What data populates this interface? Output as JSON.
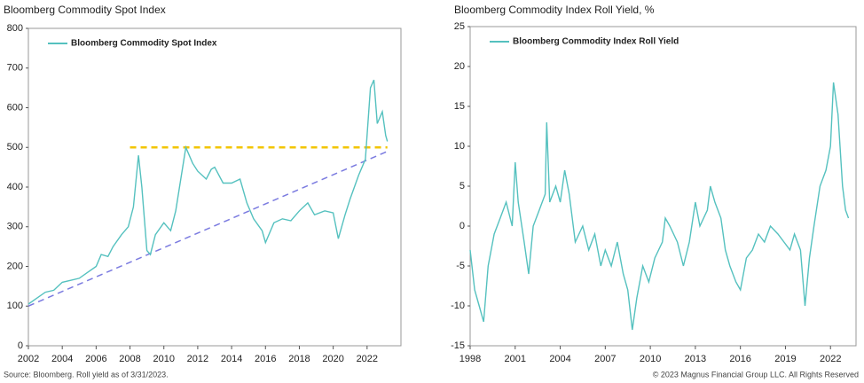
{
  "chart_data": [
    {
      "type": "line",
      "title": "Bloomberg Commodity Spot Index",
      "xlim": [
        2002,
        2024
      ],
      "xticks": [
        2002,
        2004,
        2006,
        2008,
        2010,
        2012,
        2014,
        2016,
        2018,
        2020,
        2022
      ],
      "ylim": [
        0,
        800
      ],
      "yticks": [
        0,
        100,
        200,
        300,
        400,
        500,
        600,
        700,
        800
      ],
      "grid": false,
      "series": [
        {
          "name": "Bloomberg Commodity Spot Index",
          "color": "#55c1bf",
          "x": [
            2002.0,
            2002.5,
            2003.0,
            2003.5,
            2004.0,
            2004.5,
            2005.0,
            2005.5,
            2006.0,
            2006.3,
            2006.7,
            2007.0,
            2007.5,
            2007.9,
            2008.2,
            2008.5,
            2008.7,
            2009.0,
            2009.2,
            2009.5,
            2010.0,
            2010.4,
            2010.7,
            2011.0,
            2011.3,
            2011.7,
            2012.0,
            2012.5,
            2012.8,
            2013.0,
            2013.5,
            2014.0,
            2014.5,
            2014.9,
            2015.3,
            2015.8,
            2016.0,
            2016.5,
            2017.0,
            2017.5,
            2018.0,
            2018.5,
            2018.9,
            2019.5,
            2020.0,
            2020.3,
            2020.7,
            2021.0,
            2021.5,
            2021.9,
            2022.2,
            2022.4,
            2022.6,
            2022.9,
            2023.1,
            2023.2
          ],
          "values": [
            105,
            120,
            135,
            140,
            160,
            165,
            170,
            185,
            200,
            230,
            225,
            250,
            280,
            300,
            350,
            480,
            400,
            240,
            230,
            280,
            310,
            290,
            340,
            420,
            500,
            460,
            440,
            420,
            445,
            450,
            410,
            410,
            420,
            360,
            320,
            290,
            260,
            310,
            320,
            315,
            340,
            360,
            330,
            340,
            335,
            270,
            330,
            370,
            430,
            470,
            650,
            670,
            560,
            590,
            530,
            515
          ]
        }
      ],
      "reference_lines": [
        {
          "color": "#f2c500",
          "x": [
            2008,
            2023.2
          ],
          "y": [
            500,
            500
          ]
        },
        {
          "color": "#7b7be0",
          "x": [
            2002,
            2023.2
          ],
          "y": [
            100,
            490
          ]
        }
      ]
    },
    {
      "type": "line",
      "title": "Bloomberg Commodity Index Roll Yield, %",
      "xlim": [
        1998,
        2023.7
      ],
      "xticks": [
        1998,
        2001,
        2004,
        2007,
        2010,
        2013,
        2016,
        2019,
        2022
      ],
      "ylim": [
        -15,
        25
      ],
      "yticks": [
        -15,
        -10,
        -5,
        0,
        5,
        10,
        15,
        20,
        25
      ],
      "grid": false,
      "series": [
        {
          "name": "Bloomberg Commodity Index Roll Yield",
          "color": "#55c1bf",
          "x": [
            1998.0,
            1998.3,
            1998.6,
            1998.9,
            1999.2,
            1999.6,
            2000.0,
            2000.4,
            2000.8,
            2001.0,
            2001.2,
            2001.6,
            2001.9,
            2002.2,
            2002.6,
            2003.0,
            2003.1,
            2003.3,
            2003.7,
            2004.0,
            2004.3,
            2004.6,
            2005.0,
            2005.5,
            2005.9,
            2006.3,
            2006.7,
            2007.0,
            2007.4,
            2007.8,
            2008.2,
            2008.5,
            2008.8,
            2009.1,
            2009.5,
            2009.9,
            2010.3,
            2010.8,
            2011.0,
            2011.3,
            2011.8,
            2012.2,
            2012.6,
            2013.0,
            2013.3,
            2013.8,
            2014.0,
            2014.3,
            2014.7,
            2015.0,
            2015.3,
            2015.7,
            2016.0,
            2016.4,
            2016.8,
            2017.2,
            2017.6,
            2018.0,
            2018.5,
            2018.9,
            2019.3,
            2019.6,
            2020.0,
            2020.3,
            2020.6,
            2020.9,
            2021.3,
            2021.7,
            2022.0,
            2022.2,
            2022.5,
            2022.8,
            2023.0,
            2023.2
          ],
          "values": [
            -3,
            -8,
            -10,
            -12,
            -5,
            -1,
            1,
            3,
            0,
            8,
            3,
            -2,
            -6,
            0,
            2,
            4,
            13,
            3,
            5,
            3,
            7,
            4,
            -2,
            0,
            -3,
            -1,
            -5,
            -3,
            -5,
            -2,
            -6,
            -8,
            -13,
            -9,
            -5,
            -7,
            -4,
            -2,
            1,
            0,
            -2,
            -5,
            -2,
            3,
            0,
            2,
            5,
            3,
            1,
            -3,
            -5,
            -7,
            -8,
            -4,
            -3,
            -1,
            -2,
            0,
            -1,
            -2,
            -3,
            -1,
            -3,
            -10,
            -4,
            0,
            5,
            7,
            10,
            18,
            14,
            5,
            2,
            1
          ]
        }
      ]
    }
  ],
  "source": "Source: Bloomberg. Roll yield as of 3/31/2023.",
  "copyright": "© 2023 Magnus Financial Group LLC. All Rights Reserved"
}
